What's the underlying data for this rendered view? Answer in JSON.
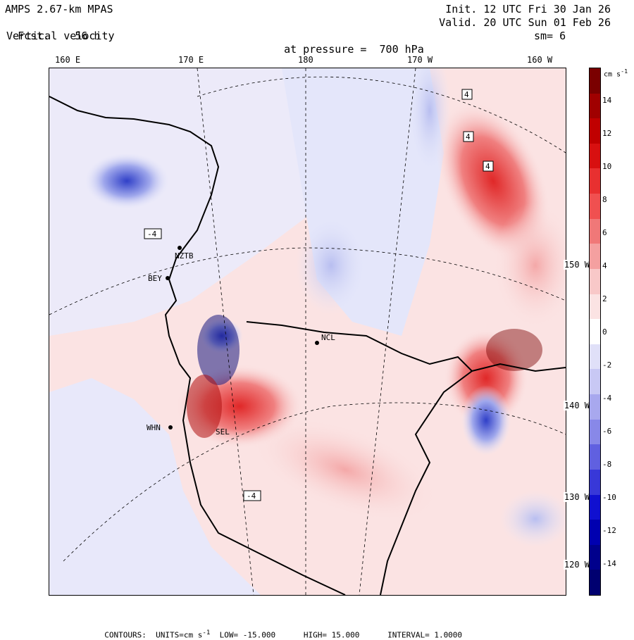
{
  "header": {
    "model": "AMPS 2.67-km MPAS",
    "fcst_label": "Fcst.",
    "fcst_value": "56 h",
    "field": "Vertical velocity",
    "init": "Init. 12 UTC Fri 30 Jan 26",
    "valid": "Valid. 20 UTC Sun 01 Feb 26",
    "pressure_label": "at pressure =",
    "pressure_value": "700 hPa",
    "smoothing": "sm= 6"
  },
  "longitude_labels": [
    "160 E",
    "170 E",
    "180",
    "170 W",
    "160 W"
  ],
  "latitude_labels": [
    "150 W",
    "140 W",
    "130 W",
    "120 W"
  ],
  "stations": [
    "NZTB",
    "BEY",
    "WHN",
    "SEL",
    "NCL"
  ],
  "map_box_labels": [
    "4",
    "-4"
  ],
  "colorbar": {
    "units": "cm s",
    "units_exp": "-1",
    "ticks": [
      "14",
      "12",
      "10",
      "8",
      "6",
      "4",
      "2",
      "0",
      "-2",
      "-4",
      "-6",
      "-8",
      "-10",
      "-12",
      "-14"
    ],
    "colors": [
      "#7a0000",
      "#a00000",
      "#c00000",
      "#d81010",
      "#e83030",
      "#f05050",
      "#f07878",
      "#f4a0a0",
      "#f8c8c8",
      "#fbe3e3",
      "#ffffff",
      "#e0e0f8",
      "#c8c8f4",
      "#a8a8ee",
      "#8888e8",
      "#6060e0",
      "#3838d8",
      "#1010d0",
      "#0000b0",
      "#00008c",
      "#000070"
    ],
    "color_positive": "#e04040",
    "color_negative": "#4050d0"
  },
  "footer": {
    "contours_label": "CONTOURS:",
    "units_text": "UNITS=cm s",
    "units_exp": "-1",
    "low": "LOW= -15.000",
    "high": "HIGH= 15.000",
    "interval": "INTERVAL= 1.0000"
  }
}
